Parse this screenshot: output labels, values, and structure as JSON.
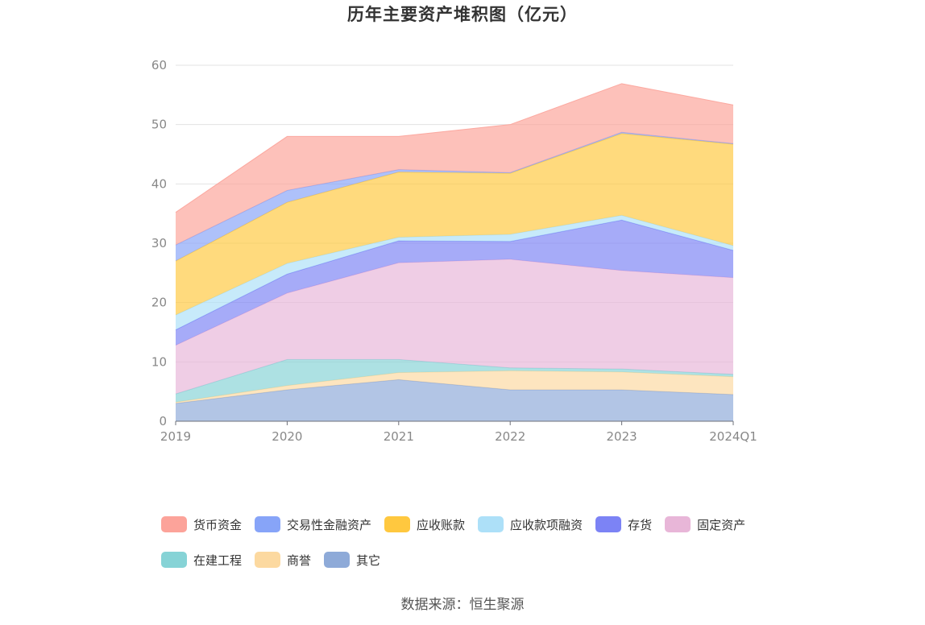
{
  "source_label": "数据来源：恒生聚源",
  "chart_data": {
    "type": "area",
    "stacked": true,
    "title": "历年主要资产堆积图（亿元）",
    "categories": [
      "2019",
      "2020",
      "2021",
      "2022",
      "2023",
      "2024Q1"
    ],
    "yticks": [
      0,
      10,
      20,
      30,
      40,
      50,
      60
    ],
    "ylim": [
      0,
      60
    ],
    "grid": true,
    "legend_position": "bottom",
    "series": [
      {
        "name": "其它",
        "color": "#8EAAD8",
        "values": [
          3.0,
          5.3,
          7.0,
          5.3,
          5.3,
          4.5
        ]
      },
      {
        "name": "商誉",
        "color": "#FCD9A0",
        "values": [
          0.2,
          0.7,
          1.2,
          3.2,
          3.0,
          3.0
        ]
      },
      {
        "name": "在建工程",
        "color": "#86D3D6",
        "values": [
          1.4,
          4.4,
          2.2,
          0.5,
          0.5,
          0.4
        ]
      },
      {
        "name": "固定资产",
        "color": "#E8B6D8",
        "values": [
          8.2,
          11.2,
          16.3,
          18.3,
          16.6,
          16.3
        ]
      },
      {
        "name": "存货",
        "color": "#7C83F5",
        "values": [
          2.6,
          3.2,
          3.7,
          3.0,
          8.5,
          4.6
        ]
      },
      {
        "name": "应收款项融资",
        "color": "#ADE0F8",
        "values": [
          2.5,
          1.8,
          0.6,
          1.2,
          0.8,
          0.8
        ]
      },
      {
        "name": "应收账款",
        "color": "#FFC83F",
        "values": [
          9.1,
          10.3,
          11.0,
          10.3,
          13.8,
          17.1
        ]
      },
      {
        "name": "交易性金融资产",
        "color": "#87A4F8",
        "values": [
          2.7,
          2.0,
          0.4,
          0.1,
          0.2,
          0.1
        ]
      },
      {
        "name": "货币资金",
        "color": "#FCA39A",
        "values": [
          5.5,
          9.1,
          5.6,
          8.1,
          8.2,
          6.5
        ]
      }
    ]
  },
  "legend_order": [
    "货币资金",
    "交易性金融资产",
    "应收账款",
    "应收款项融资",
    "存货",
    "固定资产",
    "在建工程",
    "商誉",
    "其它"
  ]
}
